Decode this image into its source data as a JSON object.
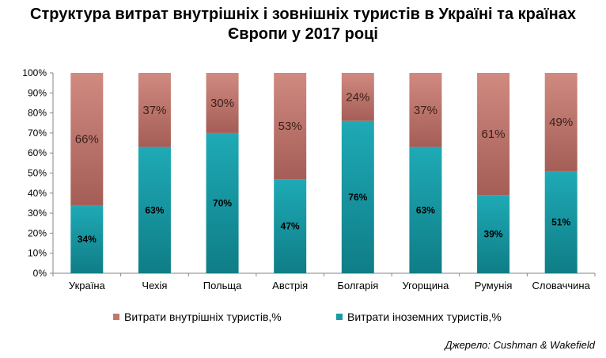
{
  "title": "Структура витрат внутрішніх і зовнішніх туристів в Україні та країнах Європи у 2017 році",
  "source": "Джерело: Cushman & Wakefield",
  "colors": {
    "domestic": "#c0776e",
    "foreign": "#1a9aa6"
  },
  "chart_data": {
    "type": "bar",
    "stacked": true,
    "percent_stacked": true,
    "title": "Структура витрат внутрішніх і зовнішніх туристів в Україні та країнах Європи у 2017 році",
    "categories": [
      "Україна",
      "Чехія",
      "Польща",
      "Австрія",
      "Болгарія",
      "Угорщина",
      "Румунія",
      "Словаччина"
    ],
    "series": [
      {
        "name": "Витрати іноземних туристів,%",
        "values": [
          34,
          63,
          70,
          47,
          76,
          63,
          39,
          51
        ],
        "labels": [
          "34%",
          "63%",
          "70%",
          "47%",
          "76%",
          "63%",
          "39%",
          "51%"
        ]
      },
      {
        "name": "Витрати внутрішніх туристів,%",
        "values": [
          66,
          37,
          30,
          53,
          24,
          37,
          61,
          49
        ],
        "labels": [
          "66%",
          "37%",
          "30%",
          "53%",
          "24%",
          "37%",
          "61%",
          "49%"
        ]
      }
    ],
    "yticks": [
      "0%",
      "10%",
      "20%",
      "30%",
      "40%",
      "50%",
      "60%",
      "70%",
      "80%",
      "90%",
      "100%"
    ],
    "ylim": [
      0,
      100
    ],
    "grid": false,
    "legend_position": "bottom"
  }
}
